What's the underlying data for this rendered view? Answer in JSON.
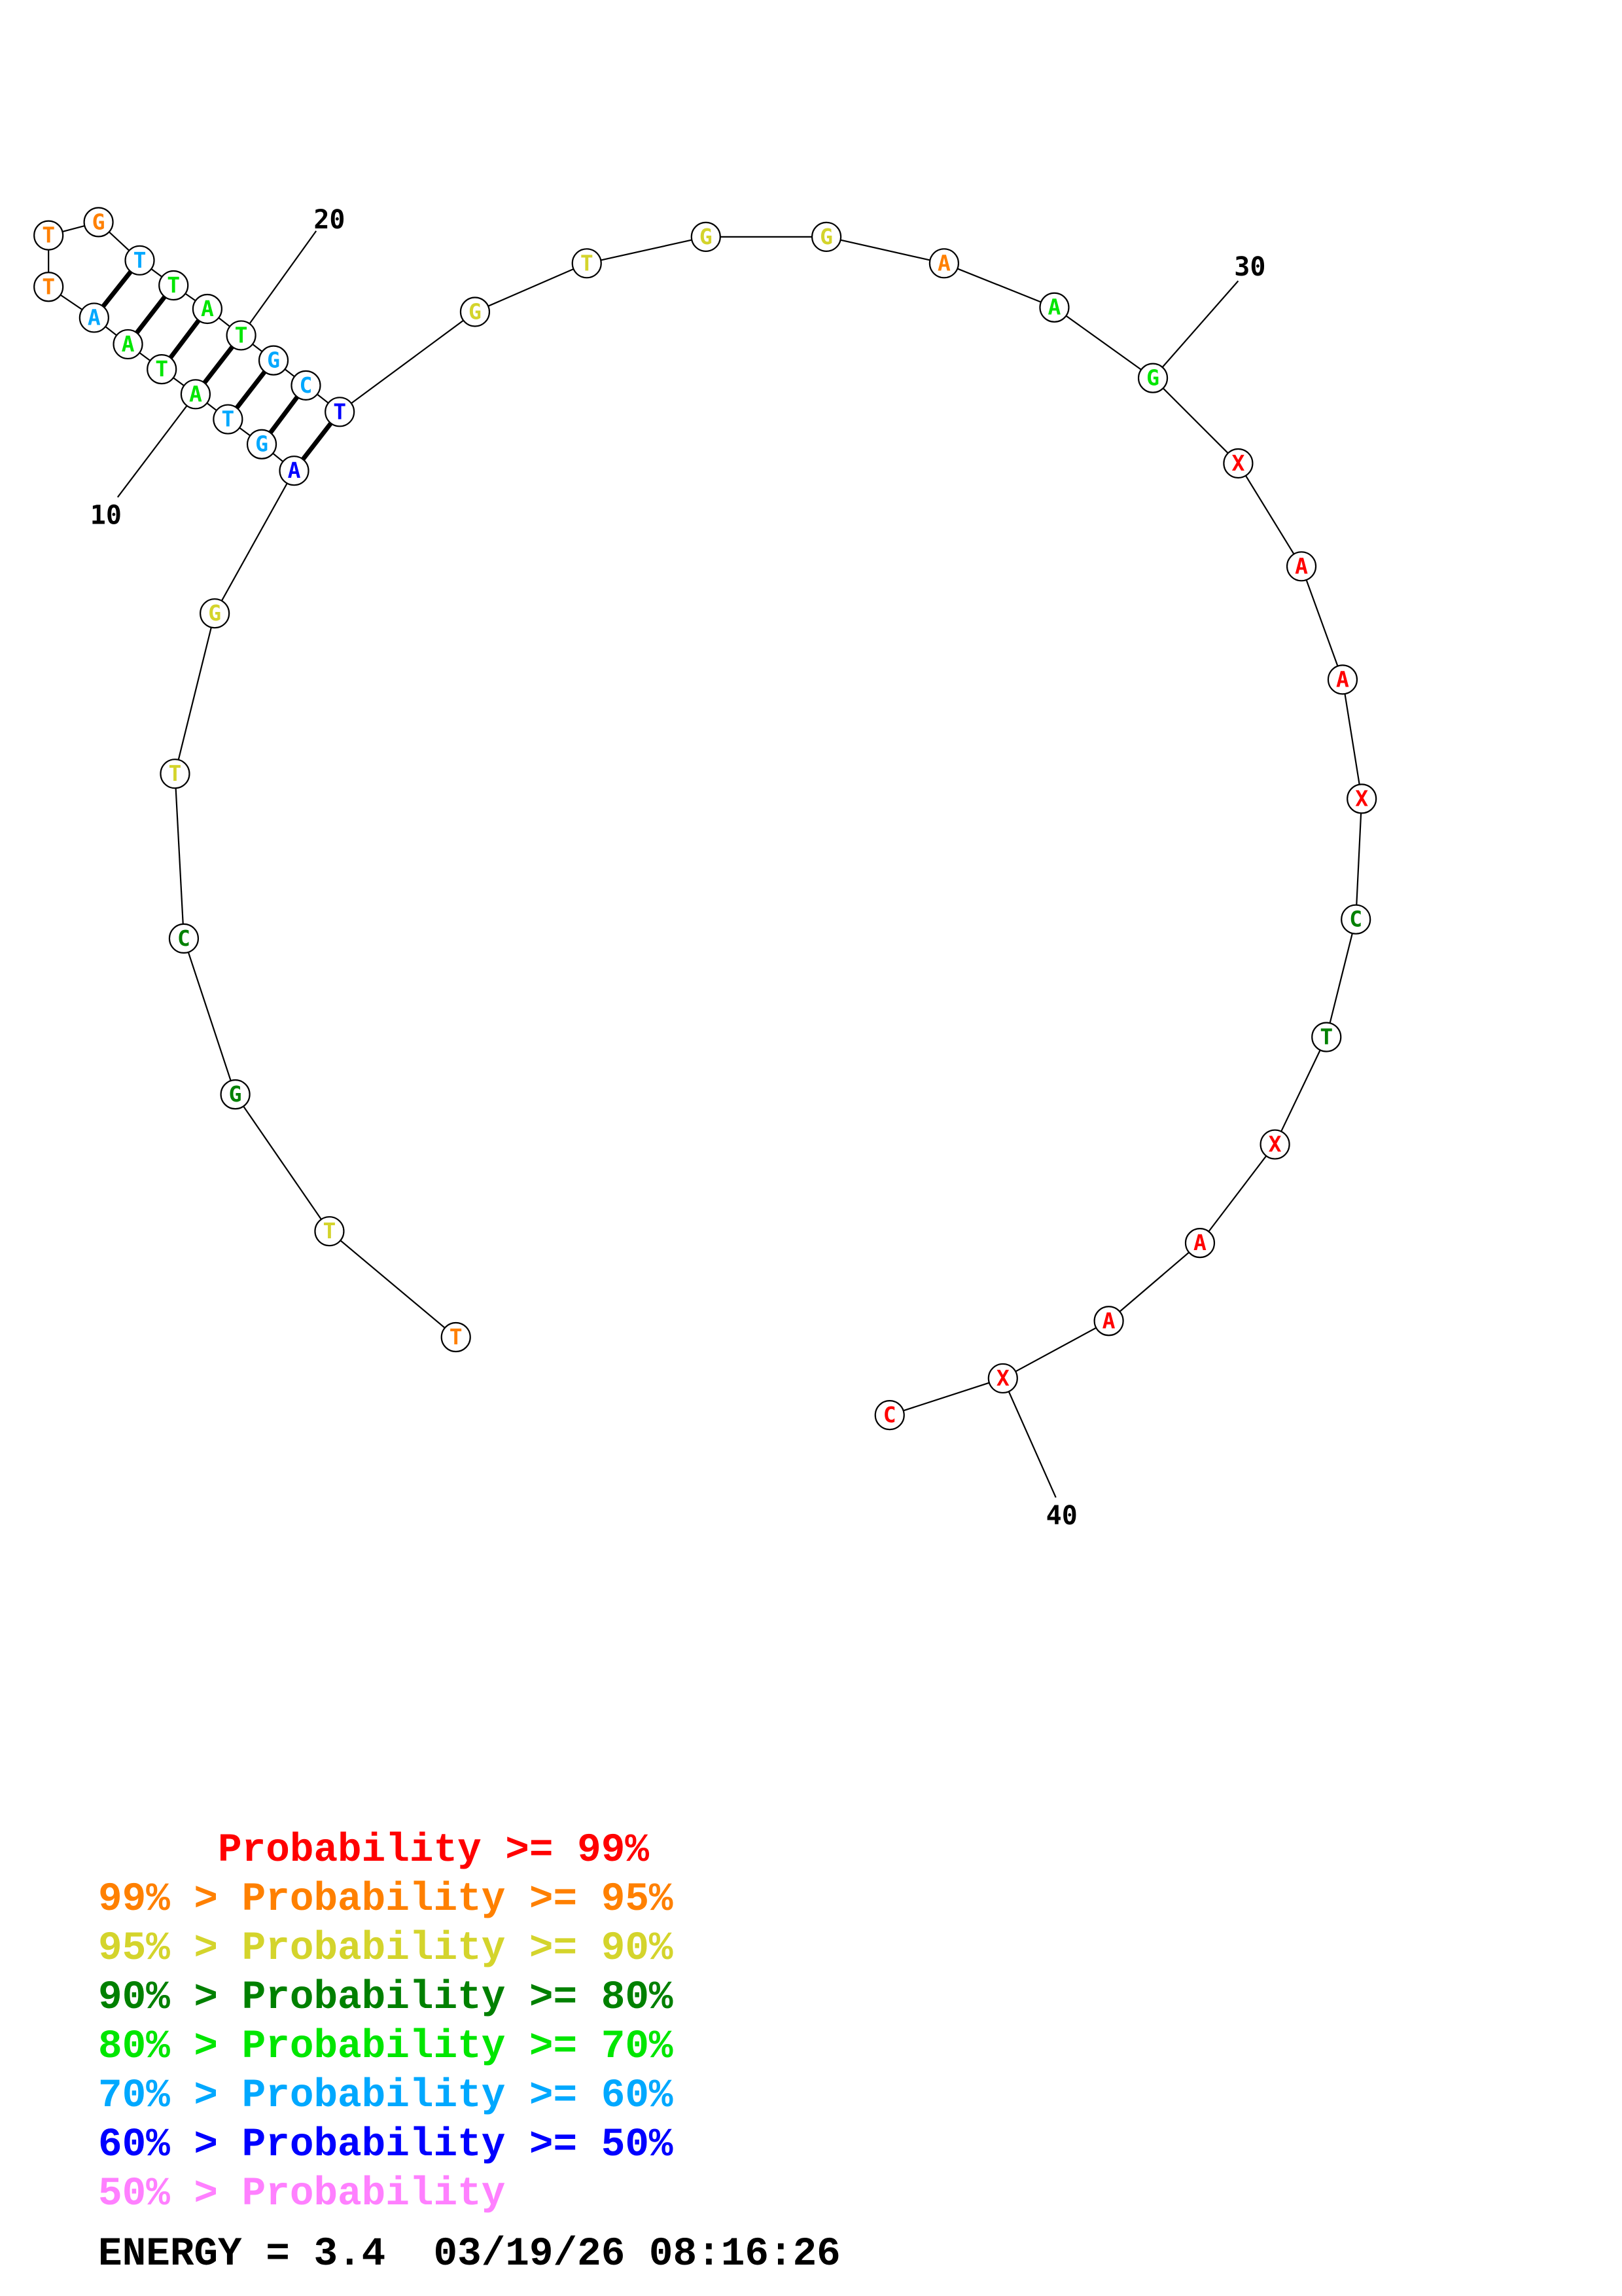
{
  "palette": {
    "red": "#ff0000",
    "orange": "#ff8000",
    "yellow": "#d4d42c",
    "darkgreen": "#008000",
    "green": "#00e600",
    "cyan": "#00a8ff",
    "blue": "#0000ff",
    "pink": "#ff80ff",
    "black": "#000000"
  },
  "nucleotides": [
    {
      "n": 1,
      "base": "T",
      "color": "orange"
    },
    {
      "n": 2,
      "base": "T",
      "color": "yellow"
    },
    {
      "n": 3,
      "base": "G",
      "color": "darkgreen"
    },
    {
      "n": 4,
      "base": "C",
      "color": "darkgreen"
    },
    {
      "n": 5,
      "base": "T",
      "color": "yellow"
    },
    {
      "n": 6,
      "base": "G",
      "color": "yellow"
    },
    {
      "n": 7,
      "base": "A",
      "color": "blue"
    },
    {
      "n": 8,
      "base": "G",
      "color": "cyan"
    },
    {
      "n": 9,
      "base": "T",
      "color": "cyan"
    },
    {
      "n": 10,
      "base": "A",
      "color": "green"
    },
    {
      "n": 11,
      "base": "T",
      "color": "green"
    },
    {
      "n": 12,
      "base": "A",
      "color": "green"
    },
    {
      "n": 13,
      "base": "A",
      "color": "cyan"
    },
    {
      "n": 14,
      "base": "T",
      "color": "orange"
    },
    {
      "n": 15,
      "base": "T",
      "color": "orange"
    },
    {
      "n": 16,
      "base": "G",
      "color": "orange"
    },
    {
      "n": 17,
      "base": "T",
      "color": "cyan"
    },
    {
      "n": 18,
      "base": "T",
      "color": "green"
    },
    {
      "n": 19,
      "base": "A",
      "color": "green"
    },
    {
      "n": 20,
      "base": "T",
      "color": "green"
    },
    {
      "n": 21,
      "base": "G",
      "color": "cyan"
    },
    {
      "n": 22,
      "base": "C",
      "color": "cyan"
    },
    {
      "n": 23,
      "base": "T",
      "color": "blue"
    },
    {
      "n": 24,
      "base": "G",
      "color": "yellow"
    },
    {
      "n": 25,
      "base": "T",
      "color": "yellow"
    },
    {
      "n": 26,
      "base": "G",
      "color": "yellow"
    },
    {
      "n": 27,
      "base": "G",
      "color": "yellow"
    },
    {
      "n": 28,
      "base": "A",
      "color": "orange"
    },
    {
      "n": 29,
      "base": "A",
      "color": "green"
    },
    {
      "n": 30,
      "base": "G",
      "color": "green"
    },
    {
      "n": 31,
      "base": "X",
      "color": "red"
    },
    {
      "n": 32,
      "base": "A",
      "color": "red"
    },
    {
      "n": 33,
      "base": "A",
      "color": "red"
    },
    {
      "n": 34,
      "base": "X",
      "color": "red"
    },
    {
      "n": 35,
      "base": "C",
      "color": "darkgreen"
    },
    {
      "n": 36,
      "base": "T",
      "color": "darkgreen"
    },
    {
      "n": 37,
      "base": "X",
      "color": "red"
    },
    {
      "n": 38,
      "base": "A",
      "color": "red"
    },
    {
      "n": 39,
      "base": "A",
      "color": "red"
    },
    {
      "n": 40,
      "base": "X",
      "color": "red"
    },
    {
      "n": 41,
      "base": "C",
      "color": "red"
    }
  ],
  "base_pairs": [
    [
      7,
      23
    ],
    [
      8,
      22
    ],
    [
      9,
      21
    ],
    [
      10,
      20
    ],
    [
      11,
      19
    ],
    [
      12,
      18
    ],
    [
      13,
      17
    ]
  ],
  "position_labels": [
    {
      "n": 10,
      "text": "10"
    },
    {
      "n": 20,
      "text": "20"
    },
    {
      "n": 30,
      "text": "30"
    },
    {
      "n": 40,
      "text": "40"
    }
  ],
  "legend": [
    {
      "text": "     Probability >= 99%",
      "color": "red"
    },
    {
      "text": "99% > Probability >= 95%",
      "color": "orange"
    },
    {
      "text": "95% > Probability >= 90%",
      "color": "yellow"
    },
    {
      "text": "90% > Probability >= 80%",
      "color": "darkgreen"
    },
    {
      "text": "80% > Probability >= 70%",
      "color": "green"
    },
    {
      "text": "70% > Probability >= 60%",
      "color": "cyan"
    },
    {
      "text": "60% > Probability >= 50%",
      "color": "blue"
    },
    {
      "text": "50% > Probability",
      "color": "pink"
    }
  ],
  "footer": {
    "energy": "ENERGY = 3.4  03/19/26 08:16:26"
  }
}
